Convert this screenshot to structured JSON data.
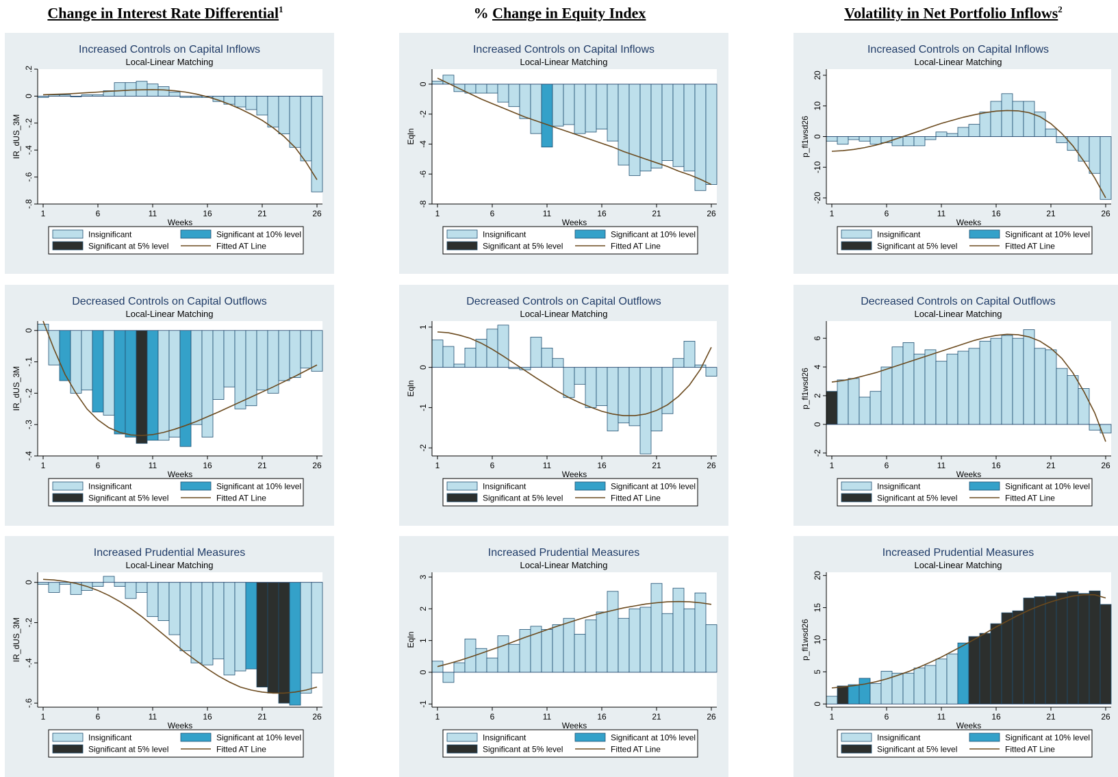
{
  "column_titles": [
    {
      "prefix": "",
      "text": "Change in Interest Rate Differential",
      "sup": "1"
    },
    {
      "prefix": "% ",
      "text": "Change in Equity Index",
      "sup": ""
    },
    {
      "prefix": "",
      "text": "Volatility in Net Portfolio Inflows",
      "sup": "2"
    }
  ],
  "legend": {
    "insignificant": "Insignificant",
    "sig10": "Significant at 10% level",
    "sig5": "Significant at 5% level",
    "fitted": "Fitted AT Line"
  },
  "colors": {
    "panel_bg": "#e8eef1",
    "insignificant": "#bddfeb",
    "sig10": "#34a1c9",
    "sig5": "#2c2f2d",
    "fitted_line": "#6b4a1e",
    "title_color": "#1f3b67",
    "bar_edge": "#1f4e70"
  },
  "chart_data": [
    {
      "type": "bar",
      "title": "Increased Controls on Capital Inflows",
      "subtitle": "Local-Linear Matching",
      "xlabel": "Weeks",
      "ylabel": "IR_dUS_3M",
      "xlim": [
        0.5,
        26.5
      ],
      "ylim": [
        -0.8,
        0.2
      ],
      "xticks": [
        1,
        6,
        11,
        16,
        21,
        26
      ],
      "yticks": [
        0.2,
        0,
        -0.2,
        -0.4,
        -0.6,
        -0.8
      ],
      "ytick_labels": [
        ".2",
        "0",
        "-.2",
        "-.4",
        "-.6",
        "-.8"
      ],
      "weeks": [
        1,
        2,
        3,
        4,
        5,
        6,
        7,
        8,
        9,
        10,
        11,
        12,
        13,
        14,
        15,
        16,
        17,
        18,
        19,
        20,
        21,
        22,
        23,
        24,
        25,
        26
      ],
      "values": [
        -0.01,
        0.01,
        0.01,
        -0.005,
        0.01,
        0.01,
        0.04,
        0.1,
        0.1,
        0.11,
        0.09,
        0.07,
        0.03,
        -0.01,
        -0.01,
        -0.01,
        -0.04,
        -0.06,
        -0.08,
        -0.1,
        -0.14,
        -0.23,
        -0.28,
        -0.38,
        -0.48,
        -0.71
      ],
      "significance": [
        0,
        0,
        0,
        0,
        0,
        0,
        0,
        0,
        0,
        0,
        0,
        0,
        0,
        0,
        0,
        0,
        0,
        0,
        0,
        0,
        0,
        0,
        0,
        0,
        0,
        0
      ],
      "fitted": [
        0.01,
        0.013,
        0.016,
        0.02,
        0.025,
        0.03,
        0.036,
        0.04,
        0.045,
        0.047,
        0.048,
        0.046,
        0.04,
        0.03,
        0.015,
        -0.005,
        -0.03,
        -0.06,
        -0.095,
        -0.135,
        -0.18,
        -0.235,
        -0.3,
        -0.38,
        -0.49,
        -0.62
      ]
    },
    {
      "type": "bar",
      "title": "Increased Controls on Capital Inflows",
      "subtitle": "Local-Linear Matching",
      "xlabel": "Weeks",
      "ylabel": "Eqln",
      "xlim": [
        0.5,
        26.5
      ],
      "ylim": [
        -8,
        1
      ],
      "xticks": [
        1,
        6,
        11,
        16,
        21,
        26
      ],
      "yticks": [
        0,
        -2,
        -4,
        -6,
        -8
      ],
      "ytick_labels": [
        "0",
        "-2",
        "-4",
        "-6",
        "-8"
      ],
      "weeks": [
        1,
        2,
        3,
        4,
        5,
        6,
        7,
        8,
        9,
        10,
        11,
        12,
        13,
        14,
        15,
        16,
        17,
        18,
        19,
        20,
        21,
        22,
        23,
        24,
        25,
        26
      ],
      "values": [
        0.2,
        0.6,
        -0.5,
        -0.6,
        -0.6,
        -0.6,
        -1.2,
        -1.5,
        -2.3,
        -3.3,
        -4.2,
        -2.8,
        -2.7,
        -3.3,
        -3.2,
        -3.0,
        -3.8,
        -5.4,
        -6.1,
        -5.8,
        -5.6,
        -5.1,
        -5.5,
        -5.8,
        -7.1,
        -6.7
      ],
      "significance": [
        0,
        0,
        0,
        0,
        0,
        0,
        0,
        0,
        0,
        0,
        1,
        0,
        0,
        0,
        0,
        0,
        0,
        0,
        0,
        0,
        0,
        0,
        0,
        0,
        0,
        0
      ],
      "fitted": [
        0.4,
        0.05,
        -0.3,
        -0.65,
        -1.0,
        -1.3,
        -1.6,
        -1.9,
        -2.2,
        -2.45,
        -2.7,
        -2.95,
        -3.2,
        -3.45,
        -3.7,
        -3.95,
        -4.2,
        -4.5,
        -4.75,
        -5.0,
        -5.25,
        -5.5,
        -5.8,
        -6.05,
        -6.35,
        -6.7
      ]
    },
    {
      "type": "bar",
      "title": "Increased Controls on Capital Inflows",
      "subtitle": "Local-Linear Matching",
      "xlabel": "Weeks",
      "ylabel": "p_fl1wsd26",
      "xlim": [
        0.5,
        26.5
      ],
      "ylim": [
        -22,
        22
      ],
      "xticks": [
        1,
        6,
        11,
        16,
        21,
        26
      ],
      "yticks": [
        20,
        10,
        0,
        -10,
        -20
      ],
      "ytick_labels": [
        "20",
        "10",
        "0",
        "-10",
        "-20"
      ],
      "weeks": [
        1,
        2,
        3,
        4,
        5,
        6,
        7,
        8,
        9,
        10,
        11,
        12,
        13,
        14,
        15,
        16,
        17,
        18,
        19,
        20,
        21,
        22,
        23,
        24,
        25,
        26
      ],
      "values": [
        -1.5,
        -2.5,
        -1,
        -1.5,
        -2.5,
        -2,
        -3,
        -3,
        -3,
        -1,
        1.5,
        1,
        3,
        4,
        8,
        11.5,
        14,
        11.5,
        11.5,
        8,
        2.5,
        -2,
        -4.5,
        -8,
        -12,
        -20.5
      ],
      "significance": [
        0,
        0,
        0,
        0,
        0,
        0,
        0,
        0,
        0,
        0,
        0,
        0,
        0,
        0,
        0,
        0,
        0,
        0,
        0,
        0,
        0,
        0,
        0,
        0,
        0,
        0
      ],
      "fitted": [
        -4.8,
        -4.6,
        -4.2,
        -3.6,
        -2.8,
        -1.8,
        -0.6,
        0.6,
        1.8,
        3.1,
        4.3,
        5.3,
        6.3,
        7.1,
        7.8,
        8.3,
        8.5,
        8.4,
        7.8,
        6.5,
        4.2,
        1.0,
        -3.0,
        -8.0,
        -13.5,
        -20
      ]
    },
    {
      "type": "bar",
      "title": "Decreased Controls on Capital Outflows",
      "subtitle": "Local-Linear Matching",
      "xlabel": "Weeks",
      "ylabel": "IR_dUS_3M",
      "xlim": [
        0.5,
        26.5
      ],
      "ylim": [
        -0.4,
        0.03
      ],
      "xticks": [
        1,
        6,
        11,
        16,
        21,
        26
      ],
      "yticks": [
        0,
        -0.1,
        -0.2,
        -0.3,
        -0.4
      ],
      "ytick_labels": [
        "0",
        "-.1",
        "-.2",
        "-.3",
        "-.4"
      ],
      "weeks": [
        1,
        2,
        3,
        4,
        5,
        6,
        7,
        8,
        9,
        10,
        11,
        12,
        13,
        14,
        15,
        16,
        17,
        18,
        19,
        20,
        21,
        22,
        23,
        24,
        25,
        26
      ],
      "values": [
        0.02,
        -0.11,
        -0.16,
        -0.2,
        -0.19,
        -0.26,
        -0.27,
        -0.33,
        -0.34,
        -0.36,
        -0.35,
        -0.35,
        -0.34,
        -0.37,
        -0.3,
        -0.34,
        -0.22,
        -0.18,
        -0.25,
        -0.24,
        -0.19,
        -0.2,
        -0.16,
        -0.15,
        -0.12,
        -0.13
      ],
      "significance": [
        0,
        0,
        1,
        0,
        0,
        1,
        0,
        1,
        1,
        2,
        1,
        0,
        0,
        1,
        0,
        0,
        0,
        0,
        0,
        0,
        0,
        0,
        0,
        0,
        0,
        0
      ],
      "fitted": [
        0.03,
        -0.06,
        -0.14,
        -0.2,
        -0.25,
        -0.285,
        -0.31,
        -0.325,
        -0.333,
        -0.335,
        -0.332,
        -0.325,
        -0.315,
        -0.303,
        -0.29,
        -0.275,
        -0.26,
        -0.244,
        -0.228,
        -0.212,
        -0.196,
        -0.18,
        -0.163,
        -0.146,
        -0.128,
        -0.11
      ]
    },
    {
      "type": "bar",
      "title": "Decreased Controls on Capital Outflows",
      "subtitle": "Local-Linear Matching",
      "xlabel": "Weeks",
      "ylabel": "Eqln",
      "xlim": [
        0.5,
        26.5
      ],
      "ylim": [
        -2.2,
        1.15
      ],
      "xticks": [
        1,
        6,
        11,
        16,
        21,
        26
      ],
      "yticks": [
        1,
        0,
        -1,
        -2
      ],
      "ytick_labels": [
        "1",
        "0",
        "-1",
        "-2"
      ],
      "weeks": [
        1,
        2,
        3,
        4,
        5,
        6,
        7,
        8,
        9,
        10,
        11,
        12,
        13,
        14,
        15,
        16,
        17,
        18,
        19,
        20,
        21,
        22,
        23,
        24,
        25,
        26
      ],
      "values": [
        0.68,
        0.52,
        0.08,
        0.48,
        0.7,
        0.95,
        1.05,
        -0.03,
        -0.06,
        0.75,
        0.48,
        0.22,
        -0.75,
        -0.42,
        -1.0,
        -0.95,
        -1.58,
        -1.38,
        -1.45,
        -2.15,
        -1.58,
        -1.15,
        0.22,
        0.65,
        0.06,
        -0.22
      ],
      "significance": [
        0,
        0,
        0,
        0,
        0,
        0,
        0,
        0,
        0,
        0,
        0,
        0,
        0,
        0,
        0,
        0,
        0,
        0,
        0,
        0,
        0,
        0,
        0,
        0,
        0,
        0
      ],
      "fitted": [
        0.88,
        0.86,
        0.8,
        0.72,
        0.6,
        0.45,
        0.28,
        0.1,
        -0.08,
        -0.26,
        -0.43,
        -0.6,
        -0.75,
        -0.88,
        -0.99,
        -1.09,
        -1.16,
        -1.2,
        -1.2,
        -1.16,
        -1.07,
        -0.93,
        -0.72,
        -0.44,
        -0.05,
        0.5
      ]
    },
    {
      "type": "bar",
      "title": "Decreased Controls on Capital Outflows",
      "subtitle": "Local-Linear Matching",
      "xlabel": "Weeks",
      "ylabel": "p_fl1wsd26",
      "xlim": [
        0.5,
        26.5
      ],
      "ylim": [
        -2.2,
        7.2
      ],
      "xticks": [
        1,
        6,
        11,
        16,
        21,
        26
      ],
      "yticks": [
        6,
        4,
        2,
        0,
        -2
      ],
      "ytick_labels": [
        "6",
        "4",
        "2",
        "0",
        "-2"
      ],
      "weeks": [
        1,
        2,
        3,
        4,
        5,
        6,
        7,
        8,
        9,
        10,
        11,
        12,
        13,
        14,
        15,
        16,
        17,
        18,
        19,
        20,
        21,
        22,
        23,
        24,
        25,
        26
      ],
      "values": [
        2.3,
        3.1,
        3.2,
        1.9,
        2.3,
        4.0,
        5.4,
        5.7,
        4.9,
        5.2,
        4.4,
        4.9,
        5.1,
        5.3,
        5.8,
        6.0,
        6.2,
        6.0,
        6.6,
        5.3,
        5.2,
        3.9,
        3.4,
        2.5,
        -0.4,
        -0.6
      ],
      "significance": [
        2,
        0,
        0,
        0,
        0,
        0,
        0,
        0,
        0,
        0,
        0,
        0,
        0,
        0,
        0,
        0,
        0,
        0,
        0,
        0,
        0,
        0,
        0,
        0,
        0,
        0
      ],
      "fitted": [
        2.95,
        3.05,
        3.2,
        3.4,
        3.6,
        3.85,
        4.1,
        4.35,
        4.6,
        4.85,
        5.1,
        5.35,
        5.6,
        5.85,
        6.05,
        6.2,
        6.28,
        6.25,
        6.1,
        5.8,
        5.3,
        4.6,
        3.6,
        2.3,
        0.8,
        -1.2
      ]
    },
    {
      "type": "bar",
      "title": "Increased Prudential Measures",
      "subtitle": "Local-Linear Matching",
      "xlabel": "Weeks",
      "ylabel": "IR_dUS_3M",
      "xlim": [
        0.5,
        26.5
      ],
      "ylim": [
        -0.62,
        0.05
      ],
      "xticks": [
        1,
        6,
        11,
        16,
        21,
        26
      ],
      "yticks": [
        0,
        -0.2,
        -0.4,
        -0.6
      ],
      "ytick_labels": [
        "0",
        "-.2",
        "-.4",
        "-.6"
      ],
      "weeks": [
        1,
        2,
        3,
        4,
        5,
        6,
        7,
        8,
        9,
        10,
        11,
        12,
        13,
        14,
        15,
        16,
        17,
        18,
        19,
        20,
        21,
        22,
        23,
        24,
        25,
        26
      ],
      "values": [
        -0.01,
        -0.05,
        -0.01,
        -0.06,
        -0.04,
        -0.02,
        0.03,
        -0.02,
        -0.08,
        -0.05,
        -0.17,
        -0.19,
        -0.26,
        -0.34,
        -0.4,
        -0.41,
        -0.38,
        -0.46,
        -0.44,
        -0.43,
        -0.52,
        -0.55,
        -0.6,
        -0.61,
        -0.55,
        -0.45
      ],
      "significance": [
        0,
        0,
        0,
        0,
        0,
        0,
        0,
        0,
        0,
        0,
        0,
        0,
        0,
        0,
        0,
        0,
        0,
        0,
        0,
        1,
        2,
        2,
        2,
        1,
        0,
        0
      ],
      "fitted": [
        0.015,
        0.012,
        0.005,
        -0.005,
        -0.02,
        -0.04,
        -0.065,
        -0.095,
        -0.13,
        -0.17,
        -0.215,
        -0.26,
        -0.305,
        -0.35,
        -0.39,
        -0.43,
        -0.465,
        -0.495,
        -0.52,
        -0.535,
        -0.545,
        -0.55,
        -0.55,
        -0.545,
        -0.535,
        -0.52
      ]
    },
    {
      "type": "bar",
      "title": "Increased Prudential Measures",
      "subtitle": "Local-Linear Matching",
      "xlabel": "Weeks",
      "ylabel": "Eqln",
      "xlim": [
        0.5,
        26.5
      ],
      "ylim": [
        -1.1,
        3.15
      ],
      "xticks": [
        1,
        6,
        11,
        16,
        21,
        26
      ],
      "yticks": [
        3,
        2,
        1,
        0,
        -1
      ],
      "ytick_labels": [
        "3",
        "2",
        "1",
        "0",
        "-1"
      ],
      "weeks": [
        1,
        2,
        3,
        4,
        5,
        6,
        7,
        8,
        9,
        10,
        11,
        12,
        13,
        14,
        15,
        16,
        17,
        18,
        19,
        20,
        21,
        22,
        23,
        24,
        25,
        26
      ],
      "values": [
        0.35,
        -0.32,
        0.3,
        1.05,
        0.75,
        0.45,
        1.15,
        0.88,
        1.35,
        1.45,
        1.35,
        1.5,
        1.7,
        1.2,
        1.65,
        1.9,
        2.55,
        1.7,
        2.0,
        2.05,
        2.8,
        1.85,
        2.65,
        2.0,
        2.5,
        1.5
      ],
      "significance": [
        0,
        0,
        0,
        0,
        0,
        0,
        0,
        0,
        0,
        0,
        0,
        0,
        0,
        0,
        0,
        0,
        0,
        0,
        0,
        0,
        0,
        0,
        0,
        0,
        0,
        0
      ],
      "fitted": [
        0.18,
        0.27,
        0.37,
        0.48,
        0.6,
        0.72,
        0.84,
        0.97,
        1.1,
        1.22,
        1.34,
        1.46,
        1.57,
        1.68,
        1.78,
        1.87,
        1.95,
        2.03,
        2.09,
        2.15,
        2.19,
        2.22,
        2.23,
        2.22,
        2.19,
        2.14
      ]
    },
    {
      "type": "bar",
      "title": "Increased Prudential Measures",
      "subtitle": "Local-Linear Matching",
      "xlabel": "Weeks",
      "ylabel": "p_fl1wsd26",
      "xlim": [
        0.5,
        26.5
      ],
      "ylim": [
        -0.5,
        20.5
      ],
      "xticks": [
        1,
        6,
        11,
        16,
        21,
        26
      ],
      "yticks": [
        20,
        15,
        10,
        5,
        0
      ],
      "ytick_labels": [
        "20",
        "15",
        "10",
        "5",
        "0"
      ],
      "weeks": [
        1,
        2,
        3,
        4,
        5,
        6,
        7,
        8,
        9,
        10,
        11,
        12,
        13,
        14,
        15,
        16,
        17,
        18,
        19,
        20,
        21,
        22,
        23,
        24,
        25,
        26
      ],
      "values": [
        1.2,
        2.8,
        3.0,
        4.0,
        3.2,
        5.1,
        4.8,
        4.8,
        5.6,
        6.0,
        7.0,
        7.8,
        9.5,
        10.5,
        11.0,
        12.5,
        14.2,
        14.5,
        16.5,
        16.7,
        16.8,
        17.3,
        17.5,
        17.2,
        17.6,
        15.5
      ],
      "significance": [
        0,
        2,
        1,
        1,
        0,
        0,
        0,
        0,
        0,
        0,
        0,
        0,
        1,
        2,
        2,
        2,
        2,
        2,
        2,
        2,
        2,
        2,
        2,
        2,
        2,
        2
      ],
      "fitted": [
        2.5,
        2.65,
        2.85,
        3.1,
        3.45,
        3.9,
        4.45,
        5.05,
        5.75,
        6.5,
        7.3,
        8.2,
        9.1,
        10.05,
        11.0,
        12.0,
        12.9,
        13.8,
        14.6,
        15.3,
        15.9,
        16.4,
        16.8,
        17.0,
        17.0,
        16.5
      ]
    }
  ]
}
